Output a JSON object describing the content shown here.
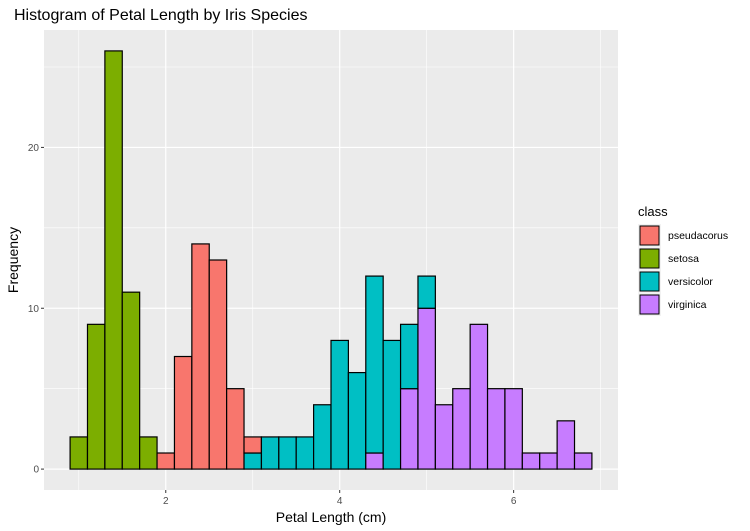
{
  "chart_data": {
    "type": "bar",
    "stacked": true,
    "title": "Histogram of Petal Length by Iris Species",
    "xlabel": "Petal Length (cm)",
    "ylabel": "Frequency",
    "xlim": [
      0.6,
      7.2
    ],
    "ylim": [
      -1.3,
      27.3
    ],
    "x_ticks": [
      2,
      4,
      6
    ],
    "y_ticks": [
      0,
      10,
      20
    ],
    "bin_width": 0.2,
    "bin_centers": [
      1.0,
      1.2,
      1.4,
      1.6,
      1.8,
      2.0,
      2.2,
      2.4,
      2.6,
      2.8,
      3.0,
      3.2,
      3.4,
      3.6,
      3.8,
      4.0,
      4.2,
      4.4,
      4.6,
      4.8,
      5.0,
      5.2,
      5.4,
      5.6,
      5.8,
      6.0,
      6.2,
      6.4,
      6.6,
      6.8
    ],
    "grid": true,
    "legend_position": "right",
    "legend_title": "class",
    "series": [
      {
        "name": "pseudacorus",
        "color": "#F8766D",
        "values": [
          0,
          0,
          0,
          0,
          0,
          1,
          7,
          14,
          13,
          5,
          1,
          0,
          0,
          0,
          0,
          0,
          0,
          0,
          0,
          0,
          0,
          0,
          0,
          0,
          0,
          0,
          0,
          0,
          0,
          0
        ]
      },
      {
        "name": "setosa",
        "color": "#7CAE00",
        "values": [
          2,
          9,
          26,
          11,
          2,
          0,
          0,
          0,
          0,
          0,
          0,
          0,
          0,
          0,
          0,
          0,
          0,
          0,
          0,
          0,
          0,
          0,
          0,
          0,
          0,
          0,
          0,
          0,
          0,
          0
        ]
      },
      {
        "name": "versicolor",
        "color": "#00BFC4",
        "values": [
          0,
          0,
          0,
          0,
          0,
          0,
          0,
          0,
          0,
          0,
          1,
          2,
          2,
          2,
          4,
          8,
          6,
          11,
          8,
          4,
          2,
          0,
          0,
          0,
          0,
          0,
          0,
          0,
          0,
          0
        ]
      },
      {
        "name": "virginica",
        "color": "#C77CFF",
        "values": [
          0,
          0,
          0,
          0,
          0,
          0,
          0,
          0,
          0,
          0,
          0,
          0,
          0,
          0,
          0,
          0,
          0,
          1,
          0,
          5,
          10,
          4,
          5,
          9,
          5,
          5,
          1,
          1,
          3,
          1
        ]
      }
    ]
  }
}
